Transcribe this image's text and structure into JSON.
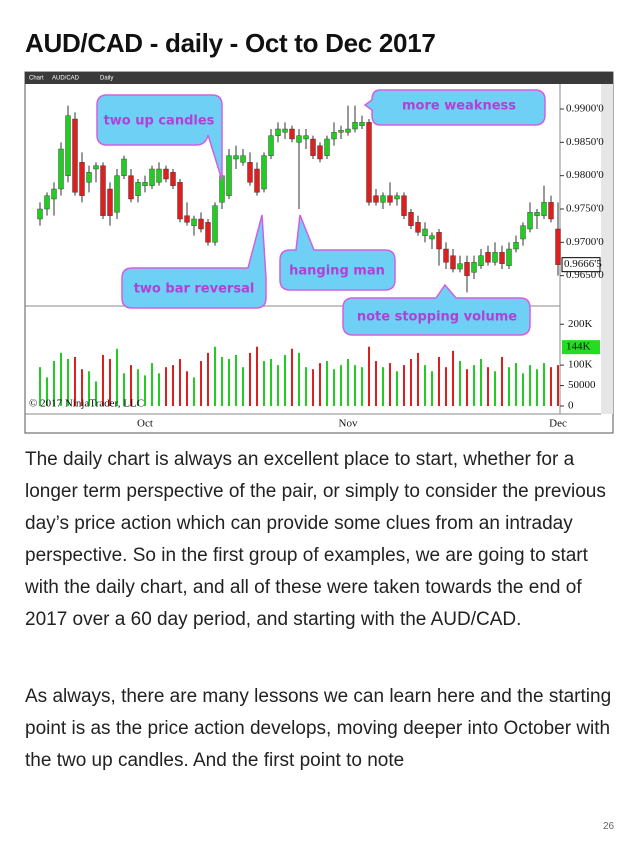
{
  "title": "AUD/CAD - daily - Oct to Dec 2017",
  "chart_data": {
    "type": "candlestick",
    "toolbar": [
      "Chart",
      "AUD/CAD",
      "Daily"
    ],
    "categories": [
      null,
      null,
      null,
      null,
      null,
      null,
      null,
      null,
      null,
      null,
      null,
      null,
      null,
      null,
      null,
      "Oct",
      null,
      null,
      null,
      null,
      null,
      null,
      null,
      null,
      null,
      null,
      null,
      null,
      null,
      null,
      null,
      null,
      null,
      null,
      null,
      null,
      null,
      null,
      null,
      null,
      null,
      null,
      null,
      null,
      "Nov",
      null,
      null,
      null,
      null,
      null,
      null,
      null,
      null,
      null,
      null,
      null,
      null,
      null,
      null,
      null,
      null,
      null,
      null,
      null,
      null,
      null,
      null,
      null,
      null,
      null,
      null,
      null,
      null,
      null,
      "Dec"
    ],
    "open": [
      0.9735,
      0.975,
      0.9765,
      0.978,
      0.98,
      0.9885,
      0.982,
      0.979,
      0.981,
      0.9815,
      0.978,
      0.9745,
      0.98,
      0.98,
      0.977,
      0.9785,
      0.9785,
      0.979,
      0.981,
      0.9805,
      0.979,
      0.974,
      0.9725,
      0.9735,
      0.973,
      0.97,
      0.976,
      0.977,
      0.9825,
      0.982,
      0.982,
      0.981,
      0.978,
      0.983,
      0.986,
      0.9865,
      0.987,
      0.985,
      0.9855,
      0.9855,
      0.9845,
      0.983,
      0.9855,
      0.9865,
      0.9865,
      0.987,
      0.9875,
      0.988,
      0.977,
      0.976,
      0.977,
      0.9765,
      0.977,
      0.9745,
      0.973,
      0.971,
      0.9705,
      0.9715,
      0.969,
      0.968,
      0.966,
      0.967,
      0.9655,
      0.9665,
      0.9685,
      0.967,
      0.9685,
      0.9665,
      0.969,
      0.9705,
      0.972,
      0.974,
      0.974,
      0.976,
      0.972
    ],
    "high": [
      0.976,
      0.9775,
      0.979,
      0.985,
      0.9905,
      0.9895,
      0.9835,
      0.9815,
      0.982,
      0.982,
      0.979,
      0.981,
      0.983,
      0.981,
      0.9795,
      0.98,
      0.9815,
      0.982,
      0.9815,
      0.981,
      0.9795,
      0.976,
      0.974,
      0.9745,
      0.9735,
      0.976,
      0.981,
      0.984,
      0.9845,
      0.984,
      0.9835,
      0.982,
      0.9835,
      0.987,
      0.988,
      0.988,
      0.9875,
      0.987,
      0.987,
      0.986,
      0.985,
      0.986,
      0.988,
      0.9875,
      0.9905,
      0.9905,
      0.989,
      0.9885,
      0.978,
      0.9775,
      0.979,
      0.9775,
      0.9775,
      0.975,
      0.974,
      0.973,
      0.9715,
      0.972,
      0.97,
      0.969,
      0.968,
      0.968,
      0.968,
      0.969,
      0.9695,
      0.97,
      0.9695,
      0.97,
      0.971,
      0.973,
      0.976,
      0.975,
      0.9785,
      0.977,
      0.976
    ],
    "low": [
      0.9725,
      0.974,
      0.974,
      0.977,
      0.979,
      0.977,
      0.976,
      0.9775,
      0.979,
      0.9735,
      0.9725,
      0.9735,
      0.9795,
      0.976,
      0.976,
      0.9775,
      0.978,
      0.9785,
      0.979,
      0.978,
      0.973,
      0.9725,
      0.971,
      0.9715,
      0.9695,
      0.9695,
      0.975,
      0.9765,
      0.981,
      0.9815,
      0.9785,
      0.977,
      0.9775,
      0.9825,
      0.985,
      0.9855,
      0.985,
      0.975,
      0.984,
      0.9825,
      0.982,
      0.9825,
      0.9845,
      0.9855,
      0.986,
      0.9865,
      0.987,
      0.9755,
      0.9755,
      0.975,
      0.9755,
      0.9755,
      0.9735,
      0.972,
      0.971,
      0.97,
      0.969,
      0.9665,
      0.966,
      0.9655,
      0.9655,
      0.9625,
      0.9645,
      0.966,
      0.9665,
      0.9665,
      0.966,
      0.966,
      0.9685,
      0.9695,
      0.9715,
      0.972,
      0.9735,
      0.973,
      0.965
    ],
    "close": [
      0.975,
      0.977,
      0.978,
      0.984,
      0.989,
      0.9775,
      0.977,
      0.9805,
      0.9815,
      0.974,
      0.974,
      0.98,
      0.9825,
      0.9765,
      0.979,
      0.979,
      0.981,
      0.981,
      0.9795,
      0.9785,
      0.9735,
      0.973,
      0.9735,
      0.972,
      0.97,
      0.9755,
      0.98,
      0.983,
      0.983,
      0.983,
      0.979,
      0.9775,
      0.983,
      0.986,
      0.987,
      0.987,
      0.9855,
      0.986,
      0.986,
      0.983,
      0.9825,
      0.9855,
      0.9865,
      0.9868,
      0.987,
      0.988,
      0.988,
      0.976,
      0.976,
      0.977,
      0.976,
      0.977,
      0.974,
      0.9725,
      0.9715,
      0.972,
      0.971,
      0.969,
      0.967,
      0.966,
      0.9668,
      0.965,
      0.967,
      0.968,
      0.967,
      0.9685,
      0.9668,
      0.969,
      0.97,
      0.9725,
      0.9745,
      0.9745,
      0.976,
      0.9735,
      0.96665
    ],
    "up_color": "#22cc22",
    "down_color": "#dd1f1f",
    "ylim": [
      0.9606,
      0.9936
    ],
    "yticks": [
      {
        "value": 0.99,
        "label": "0.9900'0"
      },
      {
        "value": 0.985,
        "label": "0.9850'0"
      },
      {
        "value": 0.98,
        "label": "0.9800'0"
      },
      {
        "value": 0.975,
        "label": "0.9750'0"
      },
      {
        "value": 0.97,
        "label": "0.9700'0"
      },
      {
        "value": 0.965,
        "label": "0.9650'0"
      }
    ],
    "last_price": {
      "value": 0.96665,
      "label": "0.9666'5"
    },
    "volume": {
      "values": [
        95000,
        70000,
        110000,
        130000,
        115000,
        120000,
        90000,
        85000,
        60000,
        125000,
        115000,
        140000,
        80000,
        100000,
        90000,
        75000,
        105000,
        80000,
        95000,
        100000,
        115000,
        85000,
        70000,
        110000,
        130000,
        145000,
        120000,
        115000,
        125000,
        95000,
        130000,
        145000,
        110000,
        115000,
        100000,
        125000,
        140000,
        130000,
        95000,
        90000,
        105000,
        110000,
        90000,
        100000,
        115000,
        100000,
        95000,
        145000,
        110000,
        95000,
        105000,
        85000,
        100000,
        115000,
        130000,
        100000,
        85000,
        120000,
        95000,
        135000,
        110000,
        90000,
        100000,
        115000,
        95000,
        85000,
        120000,
        95000,
        105000,
        80000,
        100000,
        90000,
        105000,
        95000,
        100000
      ],
      "ylim": [
        0,
        230000
      ],
      "yticks": [
        {
          "value": 200000,
          "label": "200K"
        },
        {
          "value": 100000,
          "label": "100K"
        },
        50000,
        0
      ],
      "marker": {
        "value": 144000,
        "label": "144K"
      }
    },
    "annotations": [
      "two up candles",
      "more weakness",
      "two bar reversal",
      "hanging man",
      "note stopping volume"
    ],
    "copyright": "© 2017 NinjaTrader, LLC"
  },
  "paragraphs": [
    "The daily chart is always an excellent place to start, whether for a longer term perspective of the pair, or simply to consider the previous day’s price action which can provide some clues from an intraday perspective. So in the first group of examples, we are going to start with the daily chart, and all of these were taken towards the end of 2017 over a 60 day period, and starting with the AUD/CAD.",
    "As always, there are many lessons we can learn here and the starting point is as the price action develops, moving deeper into October with the two up candles. And the first point to note"
  ],
  "page_number": "26"
}
